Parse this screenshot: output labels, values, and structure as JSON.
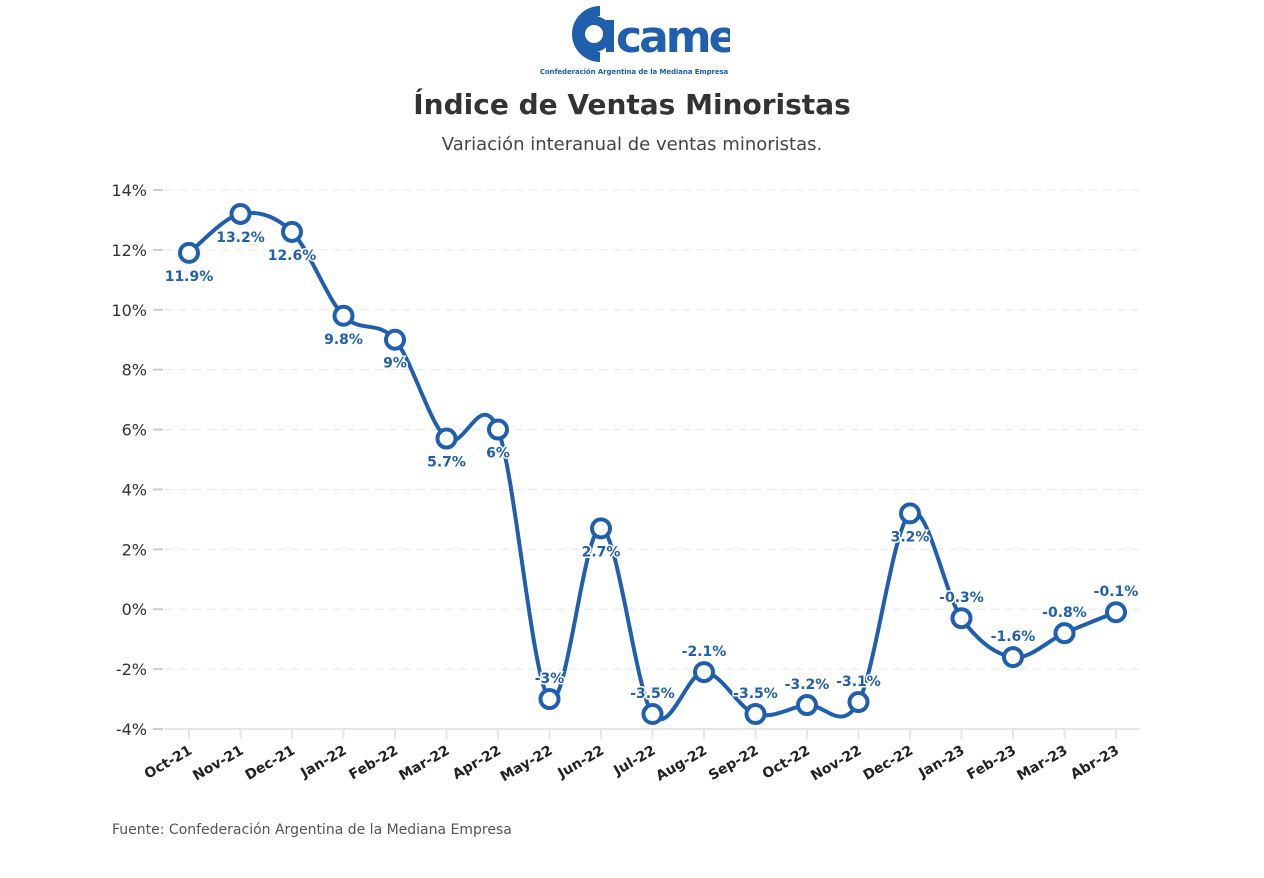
{
  "logo": {
    "wordmark": "came",
    "tagline": "Confederación Argentina de la Mediana Empresa"
  },
  "header": {
    "title": "Índice de Ventas Minoristas",
    "subtitle": "Variación interanual de ventas minoristas."
  },
  "footer": {
    "source": "Fuente: Confederación Argentina de la Mediana Empresa"
  },
  "colors": {
    "series": "#1f5fae",
    "grid": "#e6e6e6"
  },
  "chart_data": {
    "type": "line",
    "title": "Índice de Ventas Minoristas",
    "subtitle": "Variación interanual de ventas minoristas.",
    "xlabel": "",
    "ylabel": "",
    "ylim": [
      -4,
      14
    ],
    "yticks": [
      -4,
      -2,
      0,
      2,
      4,
      6,
      8,
      10,
      12,
      14
    ],
    "ytick_labels": [
      "-4%",
      "-2%",
      "0%",
      "2%",
      "4%",
      "6%",
      "8%",
      "10%",
      "12%",
      "14%"
    ],
    "grid": true,
    "legend": "none",
    "categories": [
      "Oct-21",
      "Nov-21",
      "Dec-21",
      "Jan-22",
      "Feb-22",
      "Mar-22",
      "Apr-22",
      "May-22",
      "Jun-22",
      "Jul-22",
      "Aug-22",
      "Sep-22",
      "Oct-22",
      "Nov-22",
      "Dec-22",
      "Jan-23",
      "Feb-23",
      "Mar-23",
      "Abr-23"
    ],
    "series": [
      {
        "name": "Variación interanual",
        "values": [
          11.9,
          13.2,
          12.6,
          9.8,
          9,
          5.7,
          6,
          -3,
          2.7,
          -3.5,
          -2.1,
          -3.5,
          -3.2,
          -3.1,
          3.2,
          -0.3,
          -1.6,
          -0.8,
          -0.1
        ],
        "labels": [
          "11.9%",
          "13.2%",
          "12.6%",
          "9.8%",
          "9%",
          "5.7%",
          "6%",
          "-3%",
          "2.7%",
          "-3.5%",
          "-2.1%",
          "-3.5%",
          "-3.2%",
          "-3.1%",
          "3.2%",
          "-0.3%",
          "-1.6%",
          "-0.8%",
          "-0.1%"
        ],
        "label_positions": [
          "below",
          "below",
          "below",
          "below",
          "below",
          "below",
          "below",
          "above",
          "below",
          "above",
          "above",
          "above",
          "above",
          "above",
          "below",
          "above",
          "above",
          "above",
          "above"
        ]
      }
    ]
  }
}
